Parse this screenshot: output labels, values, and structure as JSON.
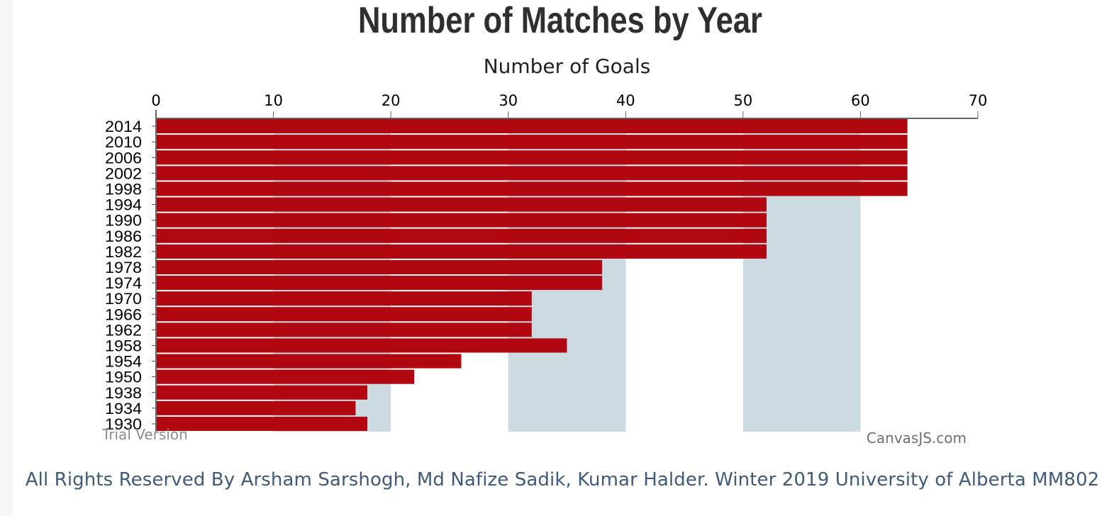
{
  "chart_data": {
    "type": "bar",
    "orientation": "horizontal",
    "title": "Number of Matches by Year",
    "xlabel": "Number of Goals",
    "ylabel": "",
    "xlim": [
      0,
      70
    ],
    "x_ticks": [
      "0",
      "10",
      "20",
      "30",
      "40",
      "50",
      "60",
      "70"
    ],
    "axis_position": "top",
    "alternating_band_color": "#ccdbe1",
    "bar_color": "#b00711",
    "categories": [
      "2014",
      "2010",
      "2006",
      "2002",
      "1998",
      "1994",
      "1990",
      "1986",
      "1982",
      "1978",
      "1974",
      "1970",
      "1966",
      "1962",
      "1958",
      "1954",
      "1950",
      "1938",
      "1934",
      "1930"
    ],
    "values": [
      64,
      64,
      64,
      64,
      64,
      52,
      52,
      52,
      52,
      38,
      38,
      32,
      32,
      32,
      35,
      26,
      22,
      18,
      17,
      18
    ]
  },
  "watermarks": {
    "trial": "Trial Version",
    "credit": "CanvasJS.com"
  },
  "footer": {
    "text": "All Rights Reserved By Arsham Sarshogh, Md Nafize Sadik, Kumar Halder. Winter 2019 University of Alberta MM802"
  }
}
